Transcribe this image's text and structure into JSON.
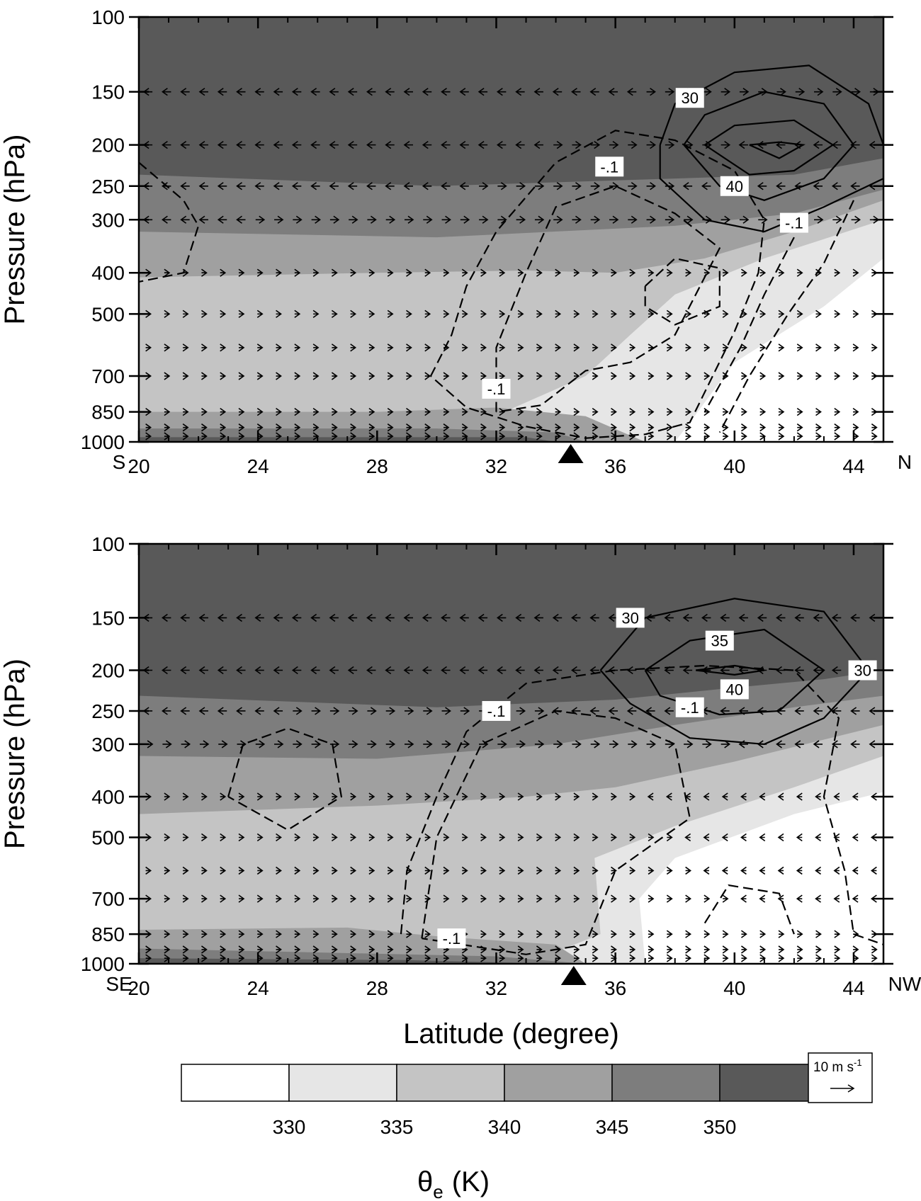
{
  "chart_data": [
    {
      "type": "contour",
      "ylabel": "Pressure (hPa)",
      "left_label": "S",
      "right_label": "N",
      "xlim": [
        20,
        45
      ],
      "xticks": [
        20,
        24,
        28,
        32,
        36,
        40,
        44
      ],
      "xminorticks": [
        21,
        22,
        23,
        25,
        26,
        27,
        29,
        30,
        31,
        33,
        34,
        35,
        37,
        38,
        39,
        41,
        42,
        43,
        45
      ],
      "ylim": [
        100,
        1000
      ],
      "yscale": "log",
      "yticks": [
        100,
        150,
        200,
        250,
        300,
        400,
        500,
        700,
        850,
        1000
      ],
      "marker_lat": 34.5,
      "shading": [
        {
          "bin": 1,
          "lat": [
            20,
            38,
            38.5,
            40,
            43,
            45,
            45,
            20
          ],
          "p": [
            1000,
            1000,
            900,
            650,
            480,
            370,
            100,
            100
          ]
        },
        {
          "bin": 2,
          "lat": [
            20,
            30,
            35,
            36.5,
            38,
            41,
            45,
            45,
            20
          ],
          "p": [
            1000,
            1000,
            700,
            560,
            450,
            370,
            300,
            100,
            100
          ]
        },
        {
          "bin": 3,
          "lat": [
            20,
            28,
            33,
            36,
            39,
            42,
            45,
            45,
            20
          ],
          "p": [
            410,
            400,
            395,
            400,
            370,
            320,
            270,
            100,
            100
          ]
        },
        {
          "bin": 4,
          "lat": [
            20,
            30,
            38,
            42,
            45,
            45,
            20
          ],
          "p": [
            320,
            330,
            310,
            290,
            255,
            100,
            100
          ]
        },
        {
          "bin": 5,
          "lat": [
            20,
            30,
            38,
            42,
            45,
            45,
            20
          ],
          "p": [
            235,
            250,
            240,
            235,
            215,
            100,
            100
          ]
        },
        {
          "bin": 3,
          "lat": [
            20,
            28,
            32,
            35,
            37,
            20
          ],
          "p": [
            850,
            850,
            830,
            870,
            1000,
            1000
          ]
        },
        {
          "bin": 4,
          "lat": [
            20,
            30,
            34,
            35,
            20
          ],
          "p": [
            930,
            930,
            950,
            1000,
            1000
          ]
        },
        {
          "bin": 5,
          "lat": [
            20,
            33,
            34,
            20
          ],
          "p": [
            975,
            975,
            1000,
            1000
          ]
        }
      ],
      "wind": [
        {
          "p": 150,
          "west": [
            [
              20,
              37
            ]
          ]
        },
        {
          "p": 200,
          "west": [
            [
              20,
              34
            ],
            [
              40,
              45
            ]
          ]
        },
        {
          "p": 250,
          "west": [
            [
              20,
              31
            ],
            [
              38,
              45
            ]
          ]
        },
        {
          "p": 300,
          "west": [
            [
              20,
              24
            ]
          ]
        },
        {
          "p": 400,
          "west": []
        },
        {
          "p": 500,
          "west": []
        },
        {
          "p": 600,
          "west": []
        },
        {
          "p": 700,
          "west": []
        },
        {
          "p": 850,
          "west": []
        },
        {
          "p": 925,
          "west": []
        },
        {
          "p": 970,
          "west": []
        }
      ],
      "contours": [
        {
          "style": "solid",
          "lat": [
            37.5,
            38,
            40,
            42.5,
            44.5,
            45,
            45,
            43,
            41,
            39,
            37.5,
            37.5
          ],
          "p": [
            200,
            160,
            135,
            130,
            160,
            200,
            240,
            280,
            320,
            300,
            240,
            200
          ]
        },
        {
          "style": "solid",
          "lat": [
            38.3,
            39,
            41,
            43,
            44,
            43,
            41,
            39.5,
            38.3
          ],
          "p": [
            200,
            170,
            150,
            160,
            200,
            240,
            270,
            250,
            200
          ]
        },
        {
          "style": "solid",
          "lat": [
            39,
            40,
            42,
            43.3,
            42,
            40.5,
            39
          ],
          "p": [
            200,
            180,
            175,
            200,
            230,
            235,
            200
          ]
        },
        {
          "style": "solid",
          "lat": [
            40.5,
            41.5,
            42.3,
            41.5,
            40.5
          ],
          "p": [
            200,
            197,
            200,
            215,
            200
          ]
        },
        {
          "style": "dashed",
          "lat": [
            20,
            21.5,
            22,
            21.5,
            20
          ],
          "p": [
            220,
            270,
            310,
            400,
            420
          ]
        },
        {
          "style": "dashed",
          "lat": [
            29.8,
            30.5,
            31,
            32,
            34,
            36,
            38,
            40,
            41,
            40.8,
            40,
            38.5,
            37,
            35,
            33,
            31,
            29.8
          ],
          "p": [
            700,
            560,
            430,
            320,
            220,
            185,
            195,
            230,
            300,
            400,
            550,
            900,
            960,
            980,
            920,
            830,
            700
          ]
        },
        {
          "style": "dashed",
          "lat": [
            32,
            32,
            33,
            34,
            36,
            38,
            39.5,
            38,
            36.5,
            35,
            33.5,
            32
          ],
          "p": [
            850,
            600,
            400,
            280,
            250,
            290,
            350,
            560,
            650,
            680,
            820,
            850
          ]
        },
        {
          "style": "dashed",
          "lat": [
            37,
            38,
            39.5,
            39.5,
            38,
            37,
            37
          ],
          "p": [
            430,
            370,
            390,
            480,
            530,
            480,
            430
          ]
        },
        {
          "style": "dashed",
          "lat": [
            44,
            43,
            41.8,
            40.5,
            39.5
          ],
          "p": [
            270,
            380,
            500,
            700,
            950
          ]
        },
        {
          "style": "dashed",
          "lat": [
            42,
            41,
            40.2,
            39
          ],
          "p": [
            330,
            450,
            600,
            850
          ]
        }
      ],
      "contour_labels": [
        {
          "text": "30",
          "lat": 38.5,
          "p": 155
        },
        {
          "text": "-.1",
          "lat": 35.8,
          "p": 225
        },
        {
          "text": "40",
          "lat": 40,
          "p": 250
        },
        {
          "text": "-.1",
          "lat": 42,
          "p": 305
        },
        {
          "text": "-.1",
          "lat": 32,
          "p": 750
        }
      ]
    },
    {
      "type": "contour",
      "ylabel": "Pressure (hPa)",
      "xlabel": "Latitude (degree)",
      "left_label": "SE",
      "right_label": "NW",
      "xlim": [
        20,
        45
      ],
      "xticks": [
        20,
        24,
        28,
        32,
        36,
        40,
        44
      ],
      "xminorticks": [
        21,
        22,
        23,
        25,
        26,
        27,
        29,
        30,
        31,
        33,
        34,
        35,
        37,
        38,
        39,
        41,
        42,
        43,
        45
      ],
      "ylim": [
        100,
        1000
      ],
      "yscale": "log",
      "yticks": [
        100,
        150,
        200,
        250,
        300,
        400,
        500,
        700,
        850,
        1000
      ],
      "marker_lat": 34.6,
      "shading": [
        {
          "bin": 1,
          "lat": [
            20,
            37,
            36.8,
            38,
            42,
            45,
            45,
            20
          ],
          "p": [
            1000,
            1000,
            700,
            560,
            440,
            390,
            100,
            100
          ]
        },
        {
          "bin": 2,
          "lat": [
            20,
            33,
            35.5,
            35.3,
            38,
            42,
            45,
            45,
            20
          ],
          "p": [
            1000,
            1000,
            850,
            560,
            470,
            380,
            320,
            100,
            100
          ]
        },
        {
          "bin": 3,
          "lat": [
            20,
            28,
            33,
            36,
            40,
            45,
            45,
            20
          ],
          "p": [
            440,
            420,
            400,
            380,
            330,
            270,
            100,
            100
          ]
        },
        {
          "bin": 4,
          "lat": [
            20,
            28,
            34,
            38,
            42,
            45,
            45,
            20
          ],
          "p": [
            320,
            325,
            300,
            270,
            245,
            230,
            100,
            100
          ]
        },
        {
          "bin": 5,
          "lat": [
            20,
            30,
            36,
            40,
            43,
            45,
            45,
            20
          ],
          "p": [
            230,
            245,
            235,
            220,
            210,
            200,
            100,
            100
          ]
        },
        {
          "bin": 3,
          "lat": [
            20,
            27,
            30,
            34,
            35,
            20
          ],
          "p": [
            830,
            820,
            860,
            900,
            1000,
            1000
          ]
        },
        {
          "bin": 4,
          "lat": [
            20,
            32,
            35,
            20
          ],
          "p": [
            920,
            960,
            1000,
            1000
          ]
        },
        {
          "bin": 5,
          "lat": [
            20,
            29,
            34,
            20
          ],
          "p": [
            970,
            980,
            1000,
            1000
          ]
        }
      ],
      "wind": [
        {
          "p": 150,
          "west": [
            [
              20,
              45
            ]
          ]
        },
        {
          "p": 200,
          "west": [
            [
              20,
              45
            ]
          ]
        },
        {
          "p": 250,
          "west": [
            [
              20,
              25
            ],
            [
              34,
              45
            ]
          ]
        },
        {
          "p": 300,
          "west": [
            [
              40,
              45
            ]
          ]
        },
        {
          "p": 400,
          "west": [
            [
              37,
              45
            ]
          ]
        },
        {
          "p": 500,
          "west": [
            [
              38,
              45
            ]
          ]
        },
        {
          "p": 600,
          "west": [
            [
              39,
              45
            ]
          ]
        },
        {
          "p": 700,
          "west": [
            [
              40,
              45
            ]
          ]
        },
        {
          "p": 850,
          "west": []
        },
        {
          "p": 925,
          "west": []
        },
        {
          "p": 970,
          "west": []
        }
      ],
      "contours": [
        {
          "style": "solid",
          "lat": [
            35.5,
            37,
            40,
            43,
            44.5,
            43,
            41,
            38.5,
            36.5,
            35.5
          ],
          "p": [
            200,
            150,
            135,
            145,
            200,
            260,
            300,
            290,
            240,
            200
          ]
        },
        {
          "style": "solid",
          "lat": [
            37,
            38.5,
            41,
            43,
            41.5,
            39.5,
            37.5,
            37
          ],
          "p": [
            200,
            170,
            160,
            200,
            250,
            255,
            230,
            200
          ]
        },
        {
          "style": "solid",
          "lat": [
            38.7,
            40,
            41,
            40,
            38.7
          ],
          "p": [
            200,
            195,
            200,
            205,
            200
          ]
        },
        {
          "style": "dashed",
          "lat": [
            23,
            23.5,
            25,
            26.5,
            26.8,
            25,
            23
          ],
          "p": [
            400,
            300,
            275,
            300,
            400,
            480,
            400
          ]
        },
        {
          "style": "dashed",
          "lat": [
            28.8,
            29,
            30,
            31,
            33,
            36,
            39,
            42,
            43.5,
            43,
            43.7,
            44,
            45
          ],
          "p": [
            850,
            600,
            400,
            280,
            215,
            200,
            195,
            200,
            260,
            400,
            600,
            850,
            900
          ]
        },
        {
          "style": "dashed",
          "lat": [
            29.5,
            30,
            31.5,
            34,
            36,
            38,
            38.5,
            36,
            35,
            33,
            29.5
          ],
          "p": [
            870,
            500,
            300,
            250,
            260,
            300,
            450,
            600,
            900,
            950,
            870
          ]
        },
        {
          "style": "dashed",
          "lat": [
            39,
            39.8,
            41.5,
            42
          ],
          "p": [
            800,
            650,
            680,
            850
          ]
        }
      ],
      "contour_labels": [
        {
          "text": "30",
          "lat": 36.5,
          "p": 150
        },
        {
          "text": "35",
          "lat": 39.5,
          "p": 170
        },
        {
          "text": "30",
          "lat": 44.3,
          "p": 200
        },
        {
          "text": "40",
          "lat": 40,
          "p": 222
        },
        {
          "text": "-.1",
          "lat": 38.5,
          "p": 245
        },
        {
          "text": "-.1",
          "lat": 32,
          "p": 250
        },
        {
          "text": "-.1",
          "lat": 30.5,
          "p": 870
        }
      ]
    }
  ],
  "colorbar": {
    "levels": [
      330,
      335,
      340,
      345,
      350
    ],
    "colors": [
      "#ffffff",
      "#e6e6e6",
      "#c4c4c4",
      "#a0a0a0",
      "#7d7d7d",
      "#595959"
    ],
    "label": {
      "symbol": "θ",
      "subscript": "e",
      "unit": "(K)"
    }
  },
  "reference_vector": {
    "label": "10 m s",
    "superscript": "-1"
  }
}
